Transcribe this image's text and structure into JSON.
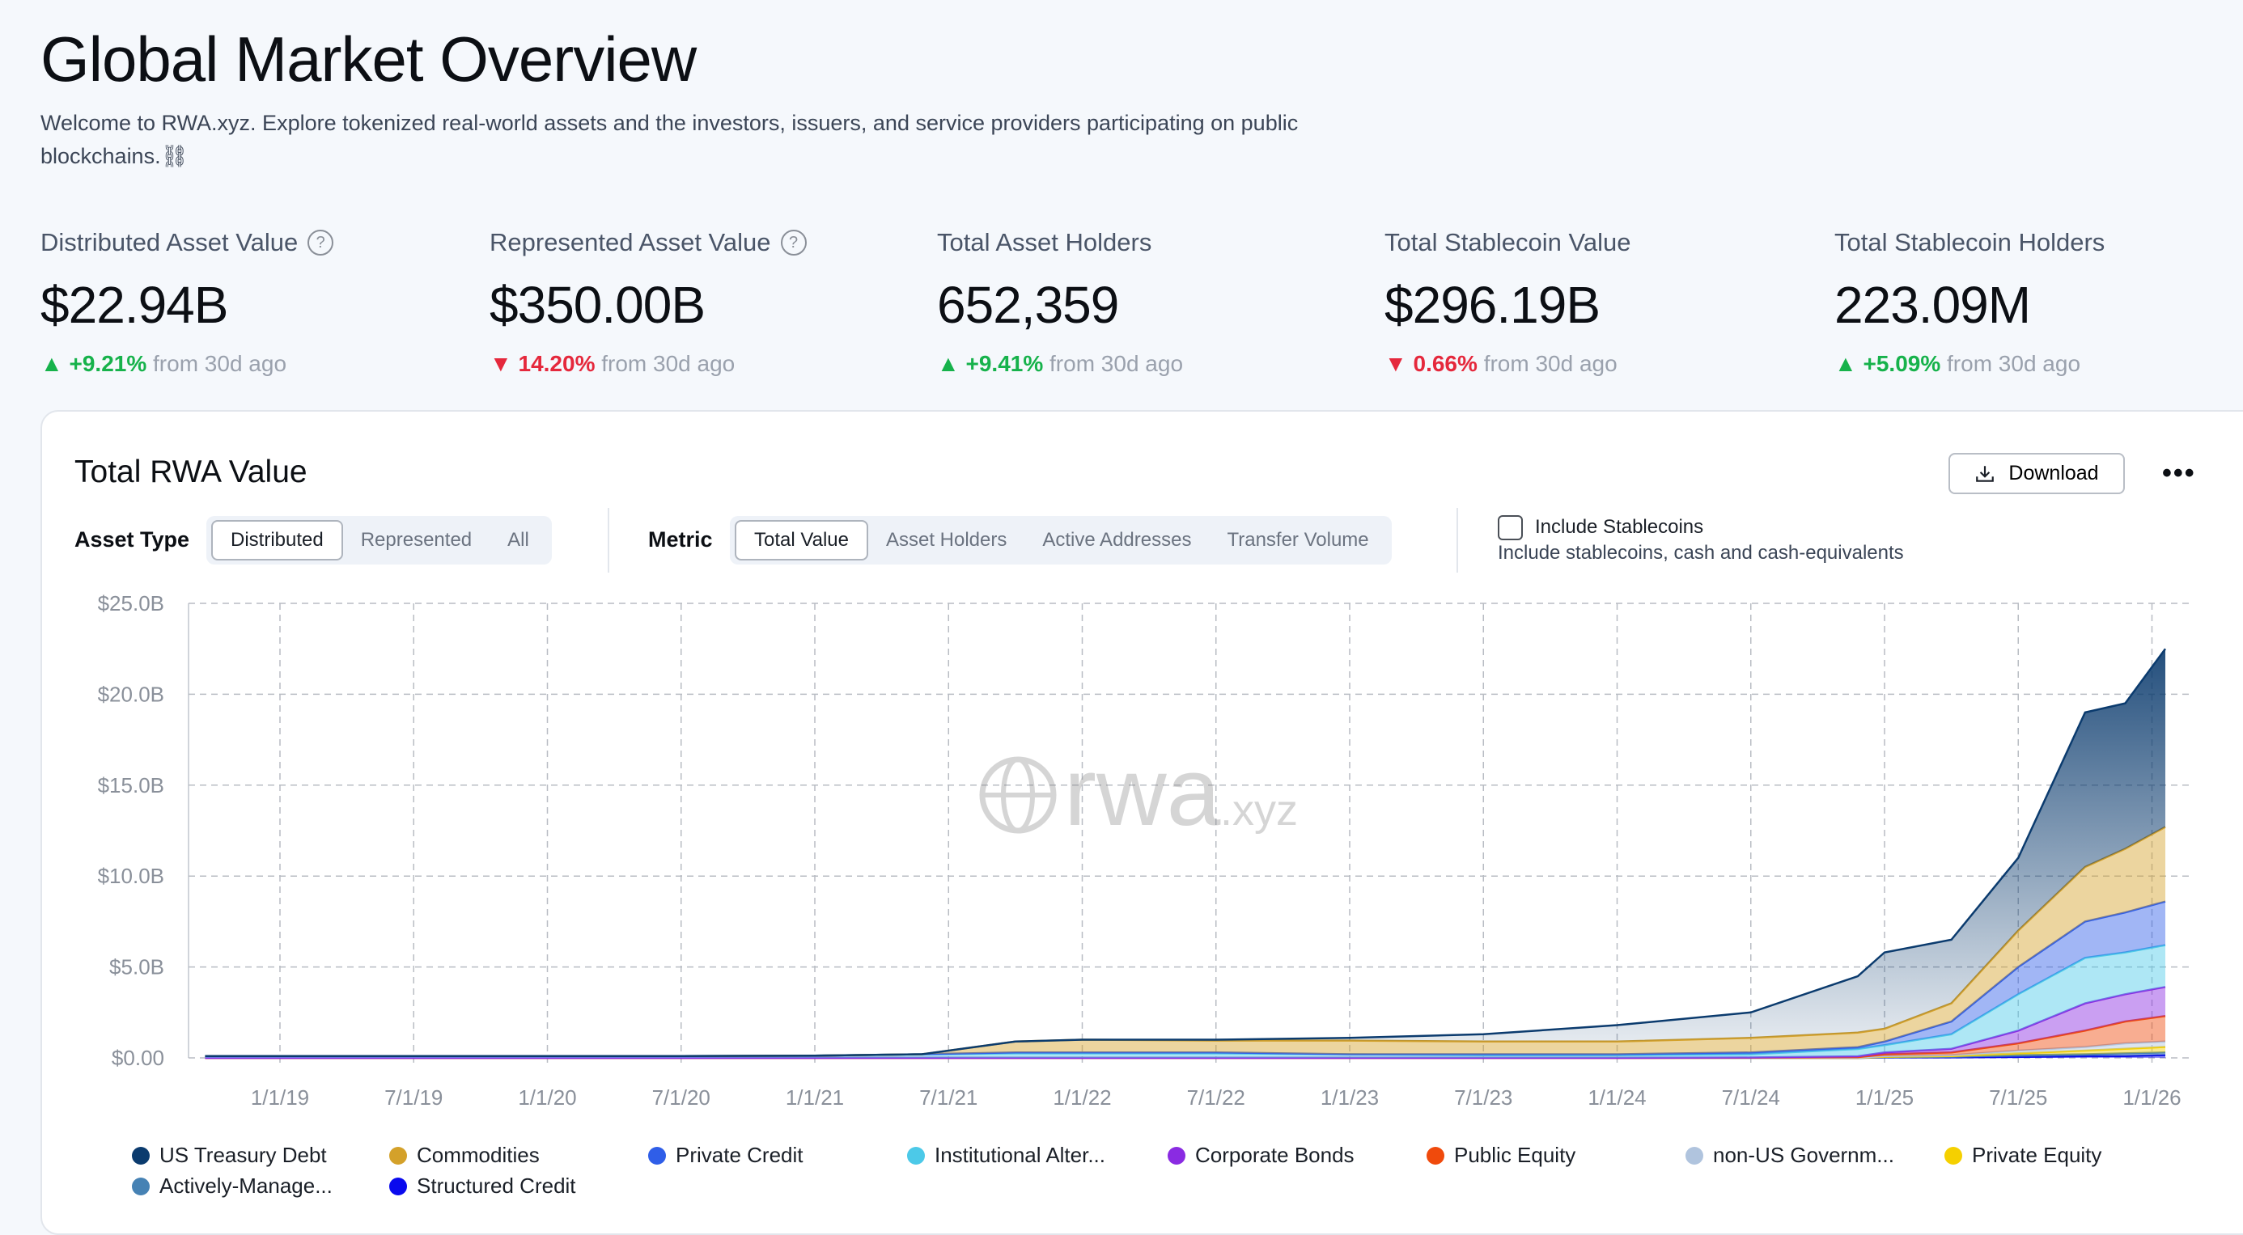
{
  "header": {
    "title": "Global Market Overview",
    "subtitle": "Welcome to RWA.xyz. Explore tokenized real-world assets and the investors, issuers, and service providers participating on public blockchains.⛓"
  },
  "stats": [
    {
      "label": "Distributed Asset Value",
      "help": "?",
      "value": "$22.94B",
      "dir": "up",
      "change": "+9.21%",
      "suffix": "from 30d ago"
    },
    {
      "label": "Represented Asset Value",
      "help": "?",
      "value": "$350.00B",
      "dir": "down",
      "change": "14.20%",
      "suffix": "from 30d ago"
    },
    {
      "label": "Total Asset Holders",
      "value": "652,359",
      "dir": "up",
      "change": "+9.41%",
      "suffix": "from 30d ago"
    },
    {
      "label": "Total Stablecoin Value",
      "value": "$296.19B",
      "dir": "down",
      "change": "0.66%",
      "suffix": "from 30d ago"
    },
    {
      "label": "Total Stablecoin Holders",
      "value": "223.09M",
      "dir": "up",
      "change": "+5.09%",
      "suffix": "from 30d ago"
    }
  ],
  "card": {
    "title": "Total RWA Value",
    "download": "Download",
    "more": "•••",
    "asset_type_label": "Asset Type",
    "asset_types": [
      "Distributed",
      "Represented",
      "All"
    ],
    "metric_label": "Metric",
    "metrics": [
      "Total Value",
      "Asset Holders",
      "Active Addresses",
      "Transfer Volume"
    ],
    "stablecoins_label": "Include Stablecoins",
    "stablecoins_desc": "Include stablecoins, cash and cash-equivalents",
    "stablecoins_checked": false,
    "watermark": "rwa.xyz"
  },
  "chart_data": {
    "type": "area",
    "stacked": true,
    "title": "Total RWA Value",
    "ylim": [
      0,
      25
    ],
    "y_ticks": [
      "$0.00",
      "$5.0B",
      "$10.0B",
      "$15.0B",
      "$20.0B",
      "$25.0B"
    ],
    "x_ticks": [
      "1/1/19",
      "7/1/19",
      "1/1/20",
      "7/1/20",
      "1/1/21",
      "7/1/21",
      "1/1/22",
      "7/1/22",
      "1/1/23",
      "7/1/23",
      "1/1/24",
      "7/1/24",
      "1/1/25",
      "7/1/25",
      "1/1/26"
    ],
    "x": [
      2018.72,
      2019.0,
      2019.5,
      2020.0,
      2020.5,
      2021.0,
      2021.4,
      2021.75,
      2022.0,
      2022.5,
      2023.0,
      2023.5,
      2024.0,
      2024.5,
      2024.9,
      2025.0,
      2025.25,
      2025.5,
      2025.75,
      2025.9,
      2026.05
    ],
    "series": [
      {
        "name": "Structured Credit",
        "color": "#0a0aee",
        "values": [
          0,
          0,
          0,
          0,
          0,
          0,
          0,
          0,
          0,
          0,
          0,
          0,
          0,
          0,
          0,
          0.02,
          0.03,
          0.05,
          0.1,
          0.1,
          0.15
        ]
      },
      {
        "name": "Actively-Manage...",
        "color": "#4682b4",
        "values": [
          0,
          0,
          0,
          0,
          0,
          0,
          0,
          0,
          0,
          0,
          0,
          0,
          0,
          0,
          0,
          0.02,
          0.03,
          0.1,
          0.1,
          0.15,
          0.15
        ]
      },
      {
        "name": "Private Equity",
        "color": "#f5d000",
        "values": [
          0,
          0,
          0,
          0,
          0,
          0,
          0,
          0,
          0,
          0,
          0,
          0,
          0,
          0,
          0,
          0.02,
          0.04,
          0.1,
          0.2,
          0.25,
          0.3
        ]
      },
      {
        "name": "non-US Governm...",
        "color": "#b0c4de",
        "values": [
          0,
          0,
          0,
          0,
          0,
          0,
          0,
          0,
          0,
          0,
          0,
          0,
          0,
          0,
          0.01,
          0.04,
          0.05,
          0.15,
          0.2,
          0.3,
          0.3
        ]
      },
      {
        "name": "Public Equity",
        "color": "#f04a0c",
        "values": [
          0,
          0,
          0,
          0,
          0,
          0,
          0,
          0,
          0,
          0,
          0,
          0,
          0,
          0.01,
          0.03,
          0.1,
          0.15,
          0.4,
          0.9,
          1.2,
          1.4
        ]
      },
      {
        "name": "Corporate Bonds",
        "color": "#8a2be2",
        "values": [
          0,
          0,
          0,
          0,
          0,
          0,
          0,
          0,
          0,
          0,
          0,
          0,
          0,
          0.01,
          0.05,
          0.1,
          0.2,
          0.7,
          1.5,
          1.5,
          1.6
        ]
      },
      {
        "name": "Institutional Alter...",
        "color": "#4cc9e8",
        "values": [
          0.1,
          0.1,
          0.1,
          0.1,
          0.1,
          0.12,
          0.2,
          0.25,
          0.25,
          0.25,
          0.2,
          0.15,
          0.15,
          0.18,
          0.4,
          0.4,
          0.8,
          2.0,
          2.5,
          2.3,
          2.3
        ]
      },
      {
        "name": "Private Credit",
        "color": "#2f5ee8",
        "values": [
          0,
          0,
          0,
          0,
          0,
          0,
          0,
          0.05,
          0.05,
          0.05,
          0,
          0.05,
          0.05,
          0.1,
          0.1,
          0.2,
          0.7,
          1.5,
          2.0,
          2.2,
          2.4
        ]
      },
      {
        "name": "Commodities",
        "color": "#d4a12a",
        "values": [
          0,
          0,
          0,
          0,
          0,
          0,
          0,
          0.6,
          0.7,
          0.65,
          0.75,
          0.7,
          0.7,
          0.8,
          0.8,
          0.7,
          1.0,
          2.0,
          3.0,
          3.5,
          4.1
        ]
      },
      {
        "name": "US Treasury Debt",
        "color": "#0b3b6e",
        "values": [
          0,
          0,
          0,
          0,
          0,
          0,
          0,
          0,
          0,
          0.05,
          0.15,
          0.4,
          0.9,
          1.4,
          3.1,
          4.2,
          3.5,
          4.0,
          8.5,
          8.0,
          9.8
        ]
      }
    ],
    "legend_order": [
      "US Treasury Debt",
      "Commodities",
      "Private Credit",
      "Institutional Alter...",
      "Corporate Bonds",
      "Public Equity",
      "non-US Governm...",
      "Private Equity",
      "Actively-Manage...",
      "Structured Credit"
    ],
    "legend_position": "bottom",
    "grid": true
  }
}
